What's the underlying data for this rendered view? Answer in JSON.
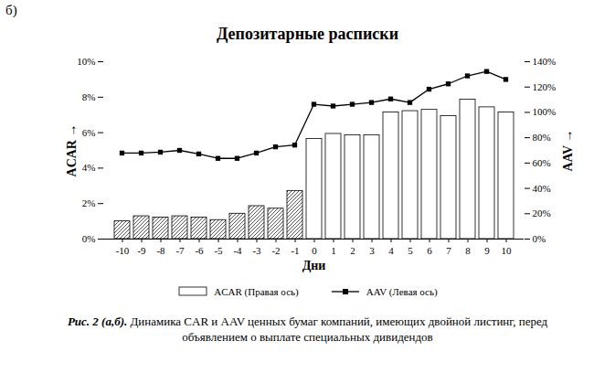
{
  "chart_data": {
    "type": "bar",
    "title": "Депозитарные расписки",
    "annotations": [
      "б)"
    ],
    "caption_label": "Рис. 2 (а,б).",
    "caption": "Динамика CAR и AAV ценных бумаг компаний, имеющих двойной листинг, перед объявлением о выплате специальных дивидендов",
    "x_label": "Дни",
    "y_label": "ACAR",
    "y2_label": "AAV",
    "categories": [
      "-10",
      "-9",
      "-8",
      "-7",
      "-6",
      "-5",
      "-4",
      "-3",
      "-2",
      "-1",
      "0",
      "1",
      "2",
      "3",
      "4",
      "5",
      "6",
      "7",
      "8",
      "9",
      "10"
    ],
    "series": [
      {
        "name": "ACAR (Правая ось)",
        "type": "bar",
        "axis": "y2",
        "color": "#ffffff",
        "colors": [
          "#555555",
          "#555555",
          "#555555",
          "#555555",
          "#555555",
          "#555555",
          "#555555",
          "#555555",
          "#555555",
          "#555555",
          "#ffffff",
          "#ffffff",
          "#ffffff",
          "#ffffff",
          "#ffffff",
          "#ffffff",
          "#ffffff",
          "#ffffff",
          "#ffffff",
          "#ffffff",
          "#ffffff"
        ],
        "values": [
          14,
          18,
          17,
          18,
          17,
          15,
          20,
          26,
          24,
          38,
          79,
          83,
          82,
          82,
          100,
          101,
          102,
          97,
          110,
          104,
          100
        ]
      },
      {
        "name": "AAV (Левая ось)",
        "type": "line",
        "color": "#000000",
        "marker": "square",
        "line_style": "solid",
        "values": [
          4.85,
          4.85,
          4.9,
          5.0,
          4.8,
          4.55,
          4.55,
          4.85,
          5.2,
          5.3,
          7.6,
          7.5,
          7.6,
          7.7,
          7.9,
          7.7,
          8.45,
          8.75,
          9.2,
          9.45,
          9.0
        ]
      }
    ],
    "ylim": [
      0,
      10
    ],
    "yticks": [
      {
        "value": 0,
        "label": "0%"
      },
      {
        "value": 2,
        "label": "2%"
      },
      {
        "value": 4,
        "label": "4%"
      },
      {
        "value": 6,
        "label": "6%"
      },
      {
        "value": 8,
        "label": "8%"
      },
      {
        "value": 10,
        "label": "10%"
      }
    ],
    "y2lim": [
      0,
      140
    ],
    "y2ticks": [
      {
        "value": 0,
        "label": "0%"
      },
      {
        "value": 20,
        "label": "20%"
      },
      {
        "value": 40,
        "label": "40%"
      },
      {
        "value": 60,
        "label": "60%"
      },
      {
        "value": 80,
        "label": "80%"
      },
      {
        "value": 100,
        "label": "100%"
      },
      {
        "value": 120,
        "label": "120%"
      },
      {
        "value": 140,
        "label": "140%"
      }
    ],
    "grid": false,
    "legend": "bottom"
  }
}
